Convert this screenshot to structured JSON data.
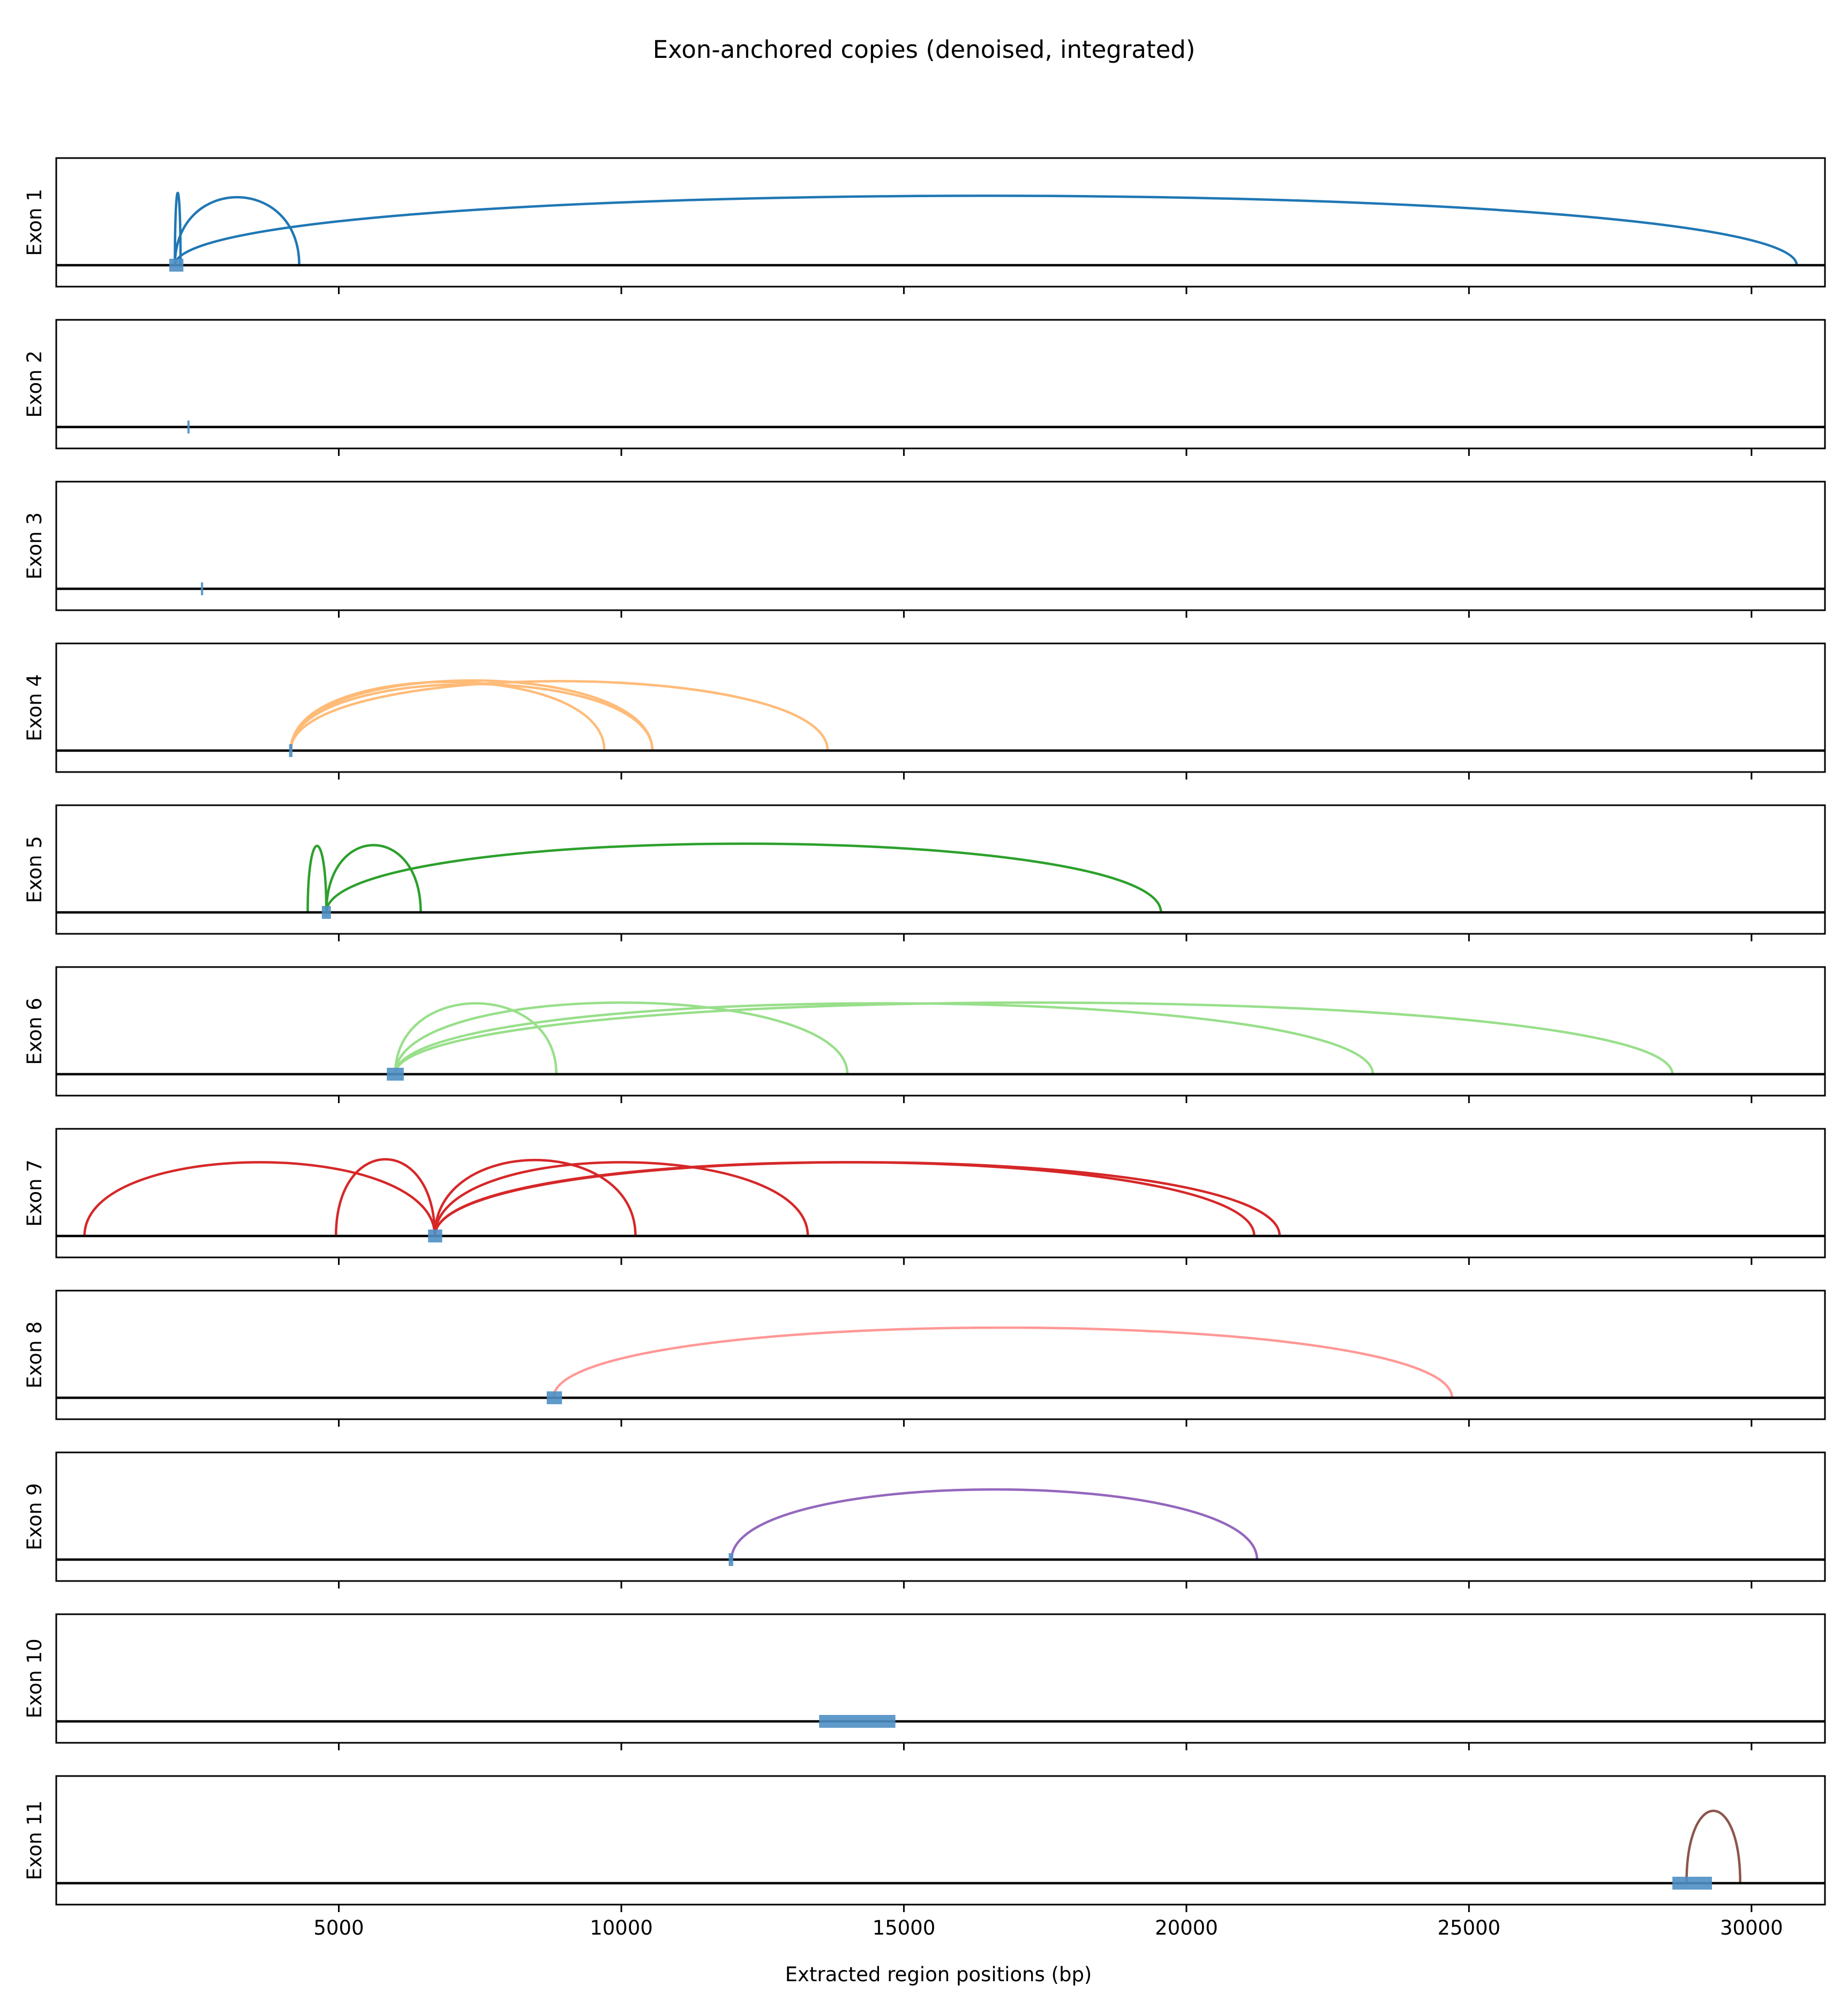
{
  "chart_data": {
    "type": "line",
    "title": "Exon-anchored copies (denoised, integrated)",
    "xlabel": "Extracted region positions (bp)",
    "xlim": [
      0,
      31300
    ],
    "xticks": [
      5000,
      10000,
      15000,
      20000,
      25000,
      30000
    ],
    "xtick_labels": [
      "5000",
      "10000",
      "15000",
      "20000",
      "25000",
      "30000"
    ],
    "shared_x": true,
    "grid": false,
    "colors": {
      "exon_box": "#4e8fc4",
      "baseline": "#000000",
      "palette": [
        "#1f77b4",
        "#aec7e8",
        "#ff7f0e",
        "#ffbb78",
        "#2ca02c",
        "#98df8a",
        "#d62728",
        "#ff9896",
        "#9467bd",
        "#c5b0d5",
        "#8c564b"
      ]
    },
    "panels": [
      {
        "label": "Exon 1",
        "exon": [
          2000,
          2250
        ],
        "color": "#1f77b4",
        "arcs": [
          {
            "from": 2100,
            "to": 2200,
            "height": 1.0
          },
          {
            "from": 2100,
            "to": 4300,
            "height": 0.94
          },
          {
            "from": 2100,
            "to": 30800,
            "height": 0.96
          }
        ]
      },
      {
        "label": "Exon 2",
        "exon": [
          2320,
          2360
        ],
        "color": "#1f77b4",
        "arcs": []
      },
      {
        "label": "Exon 3",
        "exon": [
          2560,
          2600
        ],
        "color": "#1f77b4",
        "arcs": []
      },
      {
        "label": "Exon 4",
        "exon": [
          4120,
          4180
        ],
        "color": "#ffbb78",
        "arcs": [
          {
            "from": 4150,
            "to": 9700,
            "height": 0.95
          },
          {
            "from": 4150,
            "to": 10550,
            "height": 0.97
          },
          {
            "from": 4150,
            "to": 13650,
            "height": 0.96
          },
          {
            "from": 4150,
            "to": 10550,
            "height": 0.92
          }
        ]
      },
      {
        "label": "Exon 5",
        "exon": [
          4700,
          4860
        ],
        "color": "#2ca02c",
        "arcs": [
          {
            "from": 4780,
            "to": 4450,
            "height": 0.92
          },
          {
            "from": 4780,
            "to": 6450,
            "height": 0.93
          },
          {
            "from": 4780,
            "to": 19550,
            "height": 0.95
          }
        ]
      },
      {
        "label": "Exon 6",
        "exon": [
          5850,
          6150
        ],
        "color": "#98df8a",
        "arcs": [
          {
            "from": 6000,
            "to": 8850,
            "height": 0.98
          },
          {
            "from": 6000,
            "to": 14000,
            "height": 0.99
          },
          {
            "from": 6000,
            "to": 23300,
            "height": 0.98
          },
          {
            "from": 6000,
            "to": 28600,
            "height": 0.99
          }
        ]
      },
      {
        "label": "Exon 7",
        "exon": [
          6580,
          6830
        ],
        "color": "#d62728",
        "arcs": [
          {
            "from": 6700,
            "to": 500,
            "height": 1.02
          },
          {
            "from": 6700,
            "to": 4950,
            "height": 1.06
          },
          {
            "from": 6700,
            "to": 10250,
            "height": 1.05
          },
          {
            "from": 6700,
            "to": 13300,
            "height": 1.02
          },
          {
            "from": 6700,
            "to": 21200,
            "height": 1.02
          },
          {
            "from": 6700,
            "to": 21650,
            "height": 1.02
          }
        ]
      },
      {
        "label": "Exon 8",
        "exon": [
          8680,
          8950
        ],
        "color": "#ff9896",
        "arcs": [
          {
            "from": 8800,
            "to": 24700,
            "height": 0.97
          }
        ]
      },
      {
        "label": "Exon 9",
        "exon": [
          11900,
          11980
        ],
        "color": "#9467bd",
        "arcs": [
          {
            "from": 11950,
            "to": 21250,
            "height": 0.97
          }
        ]
      },
      {
        "label": "Exon 10",
        "exon": [
          13500,
          14850
        ],
        "color": "#1f77b4",
        "arcs": []
      },
      {
        "label": "Exon 11",
        "exon": [
          28600,
          29300
        ],
        "color": "#8c564b",
        "arcs": [
          {
            "from": 28850,
            "to": 29800,
            "height": 1.0
          }
        ]
      }
    ]
  }
}
